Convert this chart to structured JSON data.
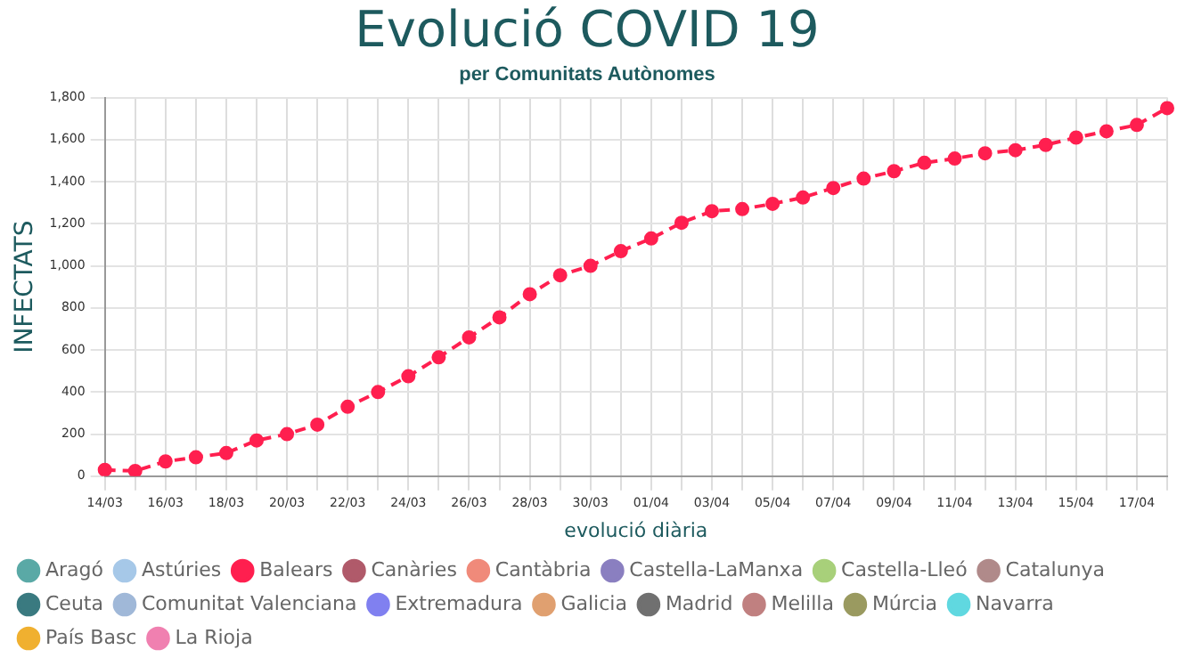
{
  "chart_data": {
    "type": "line",
    "title": "Evolució COVID 19",
    "subtitle": "per Comunitats Autònomes",
    "xlabel": "evolució diària",
    "ylabel": "INFECTATS",
    "categories": [
      "14/03",
      null,
      "16/03",
      null,
      "18/03",
      null,
      "20/03",
      null,
      "22/03",
      null,
      "24/03",
      null,
      "26/03",
      null,
      "28/03",
      null,
      "30/03",
      null,
      "01/04",
      null,
      "03/04",
      null,
      "05/04",
      null,
      "07/04",
      null,
      "09/04",
      null,
      "11/04",
      null,
      "13/04",
      null,
      "15/04",
      null,
      "17/04",
      null
    ],
    "ylim": [
      0,
      1800
    ],
    "yticks": [
      0,
      200,
      400,
      600,
      800,
      {
        "value": 1000,
        "label": "1,000"
      },
      {
        "value": 1200,
        "label": "1,200"
      },
      {
        "value": 1400,
        "label": "1,400"
      },
      {
        "value": 1600,
        "label": "1,600"
      },
      {
        "value": 1800,
        "label": "1,800"
      }
    ],
    "grid": true,
    "legend": "bottom",
    "marker": "circle",
    "line_style": "dashed",
    "series": [
      {
        "name": "Aragó",
        "color": "#5aa9a6",
        "values": [
          null,
          null,
          null,
          null,
          null,
          null,
          null,
          null,
          null,
          null,
          null,
          null,
          null,
          null,
          null,
          null,
          null,
          null,
          null,
          null,
          null,
          null,
          null,
          null,
          null,
          null,
          null,
          null,
          null,
          null,
          null,
          null,
          null,
          null,
          null,
          null
        ]
      },
      {
        "name": "Astúries",
        "color": "#a6c8e8",
        "values": [
          null,
          null,
          null,
          null,
          null,
          null,
          null,
          null,
          null,
          null,
          null,
          null,
          null,
          null,
          null,
          null,
          null,
          null,
          null,
          null,
          null,
          null,
          null,
          null,
          null,
          null,
          null,
          null,
          null,
          null,
          null,
          null,
          null,
          null,
          null,
          null
        ]
      },
      {
        "name": "Balears",
        "color": "#ff1f4f",
        "values": [
          30,
          25,
          70,
          90,
          110,
          170,
          200,
          245,
          330,
          400,
          475,
          565,
          660,
          755,
          865,
          955,
          1000,
          1070,
          1130,
          1205,
          1260,
          1270,
          1295,
          1325,
          1370,
          1415,
          1450,
          1490,
          1510,
          1535,
          1550,
          1575,
          1610,
          1640,
          1670,
          1750
        ]
      },
      {
        "name": "Canàries",
        "color": "#b05a6a",
        "values": [
          null,
          null,
          null,
          null,
          null,
          null,
          null,
          null,
          null,
          null,
          null,
          null,
          null,
          null,
          null,
          null,
          null,
          null,
          null,
          null,
          null,
          null,
          null,
          null,
          null,
          null,
          null,
          null,
          null,
          null,
          null,
          null,
          null,
          null,
          null,
          null
        ]
      },
      {
        "name": "Cantàbria",
        "color": "#f08a7a",
        "values": [
          null,
          null,
          null,
          null,
          null,
          null,
          null,
          null,
          null,
          null,
          null,
          null,
          null,
          null,
          null,
          null,
          null,
          null,
          null,
          null,
          null,
          null,
          null,
          null,
          null,
          null,
          null,
          null,
          null,
          null,
          null,
          null,
          null,
          null,
          null,
          null
        ]
      },
      {
        "name": "Castella-LaManxa",
        "color": "#8a7fc0",
        "values": [
          null,
          null,
          null,
          null,
          null,
          null,
          null,
          null,
          null,
          null,
          null,
          null,
          null,
          null,
          null,
          null,
          null,
          null,
          null,
          null,
          null,
          null,
          null,
          null,
          null,
          null,
          null,
          null,
          null,
          null,
          null,
          null,
          null,
          null,
          null,
          null
        ]
      },
      {
        "name": "Castella-Lleó",
        "color": "#a8d07a",
        "values": [
          null,
          null,
          null,
          null,
          null,
          null,
          null,
          null,
          null,
          null,
          null,
          null,
          null,
          null,
          null,
          null,
          null,
          null,
          null,
          null,
          null,
          null,
          null,
          null,
          null,
          null,
          null,
          null,
          null,
          null,
          null,
          null,
          null,
          null,
          null,
          null
        ]
      },
      {
        "name": "Catalunya",
        "color": "#b08a8a",
        "values": [
          null,
          null,
          null,
          null,
          null,
          null,
          null,
          null,
          null,
          null,
          null,
          null,
          null,
          null,
          null,
          null,
          null,
          null,
          null,
          null,
          null,
          null,
          null,
          null,
          null,
          null,
          null,
          null,
          null,
          null,
          null,
          null,
          null,
          null,
          null,
          null
        ]
      },
      {
        "name": "Ceuta",
        "color": "#3a7a80",
        "values": [
          null,
          null,
          null,
          null,
          null,
          null,
          null,
          null,
          null,
          null,
          null,
          null,
          null,
          null,
          null,
          null,
          null,
          null,
          null,
          null,
          null,
          null,
          null,
          null,
          null,
          null,
          null,
          null,
          null,
          null,
          null,
          null,
          null,
          null,
          null,
          null
        ]
      },
      {
        "name": "Comunitat Valenciana",
        "color": "#a0b8d8",
        "values": [
          null,
          null,
          null,
          null,
          null,
          null,
          null,
          null,
          null,
          null,
          null,
          null,
          null,
          null,
          null,
          null,
          null,
          null,
          null,
          null,
          null,
          null,
          null,
          null,
          null,
          null,
          null,
          null,
          null,
          null,
          null,
          null,
          null,
          null,
          null,
          null
        ]
      },
      {
        "name": "Extremadura",
        "color": "#8080f0",
        "values": [
          null,
          null,
          null,
          null,
          null,
          null,
          null,
          null,
          null,
          null,
          null,
          null,
          null,
          null,
          null,
          null,
          null,
          null,
          null,
          null,
          null,
          null,
          null,
          null,
          null,
          null,
          null,
          null,
          null,
          null,
          null,
          null,
          null,
          null,
          null,
          null
        ]
      },
      {
        "name": "Galicia",
        "color": "#e0a070",
        "values": [
          null,
          null,
          null,
          null,
          null,
          null,
          null,
          null,
          null,
          null,
          null,
          null,
          null,
          null,
          null,
          null,
          null,
          null,
          null,
          null,
          null,
          null,
          null,
          null,
          null,
          null,
          null,
          null,
          null,
          null,
          null,
          null,
          null,
          null,
          null,
          null
        ]
      },
      {
        "name": "Madrid",
        "color": "#707070",
        "values": [
          null,
          null,
          null,
          null,
          null,
          null,
          null,
          null,
          null,
          null,
          null,
          null,
          null,
          null,
          null,
          null,
          null,
          null,
          null,
          null,
          null,
          null,
          null,
          null,
          null,
          null,
          null,
          null,
          null,
          null,
          null,
          null,
          null,
          null,
          null,
          null
        ]
      },
      {
        "name": "Melilla",
        "color": "#c08080",
        "values": [
          null,
          null,
          null,
          null,
          null,
          null,
          null,
          null,
          null,
          null,
          null,
          null,
          null,
          null,
          null,
          null,
          null,
          null,
          null,
          null,
          null,
          null,
          null,
          null,
          null,
          null,
          null,
          null,
          null,
          null,
          null,
          null,
          null,
          null,
          null,
          null
        ]
      },
      {
        "name": "Múrcia",
        "color": "#9a9a60",
        "values": [
          null,
          null,
          null,
          null,
          null,
          null,
          null,
          null,
          null,
          null,
          null,
          null,
          null,
          null,
          null,
          null,
          null,
          null,
          null,
          null,
          null,
          null,
          null,
          null,
          null,
          null,
          null,
          null,
          null,
          null,
          null,
          null,
          null,
          null,
          null,
          null
        ]
      },
      {
        "name": "Navarra",
        "color": "#60d8e0",
        "values": [
          null,
          null,
          null,
          null,
          null,
          null,
          null,
          null,
          null,
          null,
          null,
          null,
          null,
          null,
          null,
          null,
          null,
          null,
          null,
          null,
          null,
          null,
          null,
          null,
          null,
          null,
          null,
          null,
          null,
          null,
          null,
          null,
          null,
          null,
          null,
          null
        ]
      },
      {
        "name": "País Basc",
        "color": "#f0b030",
        "values": [
          null,
          null,
          null,
          null,
          null,
          null,
          null,
          null,
          null,
          null,
          null,
          null,
          null,
          null,
          null,
          null,
          null,
          null,
          null,
          null,
          null,
          null,
          null,
          null,
          null,
          null,
          null,
          null,
          null,
          null,
          null,
          null,
          null,
          null,
          null,
          null
        ]
      },
      {
        "name": "La Rioja",
        "color": "#f080b0",
        "values": [
          null,
          null,
          null,
          null,
          null,
          null,
          null,
          null,
          null,
          null,
          null,
          null,
          null,
          null,
          null,
          null,
          null,
          null,
          null,
          null,
          null,
          null,
          null,
          null,
          null,
          null,
          null,
          null,
          null,
          null,
          null,
          null,
          null,
          null,
          null,
          null
        ]
      }
    ]
  }
}
